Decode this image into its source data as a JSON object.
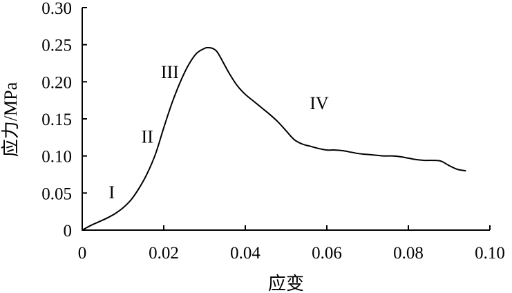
{
  "chart_data": {
    "type": "line",
    "xlabel": "应变",
    "ylabel": "应力/MPa",
    "xlim": [
      0,
      0.1
    ],
    "ylim": [
      0,
      0.3
    ],
    "xticks": [
      0,
      0.02,
      0.04,
      0.06,
      0.08,
      0.1
    ],
    "xtick_labels": [
      "0",
      "0.02",
      "0.04",
      "0.06",
      "0.08",
      "0.10"
    ],
    "yticks": [
      0,
      0.05,
      0.1,
      0.15,
      0.2,
      0.25,
      0.3
    ],
    "ytick_labels": [
      "0",
      "0.05",
      "0.10",
      "0.15",
      "0.20",
      "0.25",
      "0.30"
    ],
    "grid": false,
    "line_color": "#000000",
    "series": [
      {
        "x": [
          0,
          0.002,
          0.004,
          0.006,
          0.008,
          0.01,
          0.012,
          0.014,
          0.016,
          0.018,
          0.02,
          0.022,
          0.024,
          0.026,
          0.028,
          0.03,
          0.031,
          0.032,
          0.033,
          0.034,
          0.036,
          0.038,
          0.04,
          0.042,
          0.044,
          0.046,
          0.048,
          0.05,
          0.052,
          0.054,
          0.056,
          0.058,
          0.06,
          0.062,
          0.064,
          0.066,
          0.068,
          0.07,
          0.072,
          0.074,
          0.076,
          0.078,
          0.08,
          0.082,
          0.084,
          0.086,
          0.088,
          0.09,
          0.092,
          0.094
        ],
        "y": [
          0,
          0.006,
          0.011,
          0.016,
          0.022,
          0.03,
          0.041,
          0.057,
          0.077,
          0.103,
          0.138,
          0.171,
          0.199,
          0.222,
          0.238,
          0.245,
          0.246,
          0.245,
          0.241,
          0.232,
          0.212,
          0.195,
          0.183,
          0.174,
          0.165,
          0.156,
          0.146,
          0.134,
          0.122,
          0.116,
          0.113,
          0.11,
          0.108,
          0.108,
          0.107,
          0.105,
          0.103,
          0.102,
          0.101,
          0.1,
          0.1,
          0.099,
          0.097,
          0.095,
          0.094,
          0.094,
          0.093,
          0.087,
          0.082,
          0.08
        ]
      }
    ],
    "annotations": [
      {
        "text": "I",
        "x": 0.0065,
        "y": 0.043
      },
      {
        "text": "II",
        "x": 0.0145,
        "y": 0.118
      },
      {
        "text": "III",
        "x": 0.0193,
        "y": 0.205
      },
      {
        "text": "IV",
        "x": 0.0558,
        "y": 0.163
      }
    ]
  }
}
